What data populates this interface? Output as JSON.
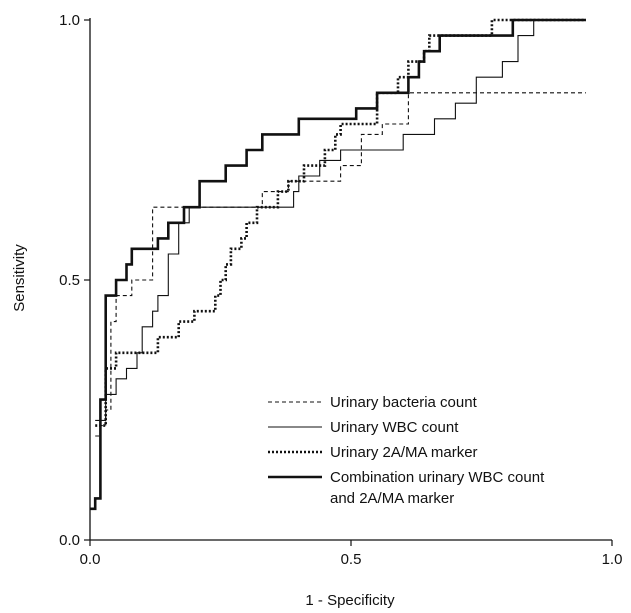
{
  "chart_data": {
    "type": "line",
    "xlabel": "1 - Specificity",
    "ylabel": "Sensitivity",
    "xlim": [
      0,
      1
    ],
    "ylim": [
      0,
      1
    ],
    "x_ticks": [
      "0.0",
      "0.5",
      "1.0"
    ],
    "y_ticks": [
      "0.0",
      "0.5",
      "1.0"
    ],
    "grid": false,
    "legend_position": "bottom-right",
    "series": [
      {
        "name": "Urinary bacteria count",
        "style": "dashed-thin",
        "points": [
          [
            0.01,
            0.2
          ],
          [
            0.02,
            0.2
          ],
          [
            0.02,
            0.22
          ],
          [
            0.03,
            0.22
          ],
          [
            0.03,
            0.25
          ],
          [
            0.04,
            0.25
          ],
          [
            0.04,
            0.42
          ],
          [
            0.05,
            0.42
          ],
          [
            0.05,
            0.47
          ],
          [
            0.08,
            0.47
          ],
          [
            0.08,
            0.5
          ],
          [
            0.12,
            0.5
          ],
          [
            0.12,
            0.64
          ],
          [
            0.33,
            0.64
          ],
          [
            0.33,
            0.67
          ],
          [
            0.38,
            0.67
          ],
          [
            0.38,
            0.69
          ],
          [
            0.43,
            0.69
          ],
          [
            0.43,
            0.69
          ],
          [
            0.48,
            0.69
          ],
          [
            0.48,
            0.72
          ],
          [
            0.52,
            0.72
          ],
          [
            0.52,
            0.78
          ],
          [
            0.56,
            0.78
          ],
          [
            0.56,
            0.8
          ],
          [
            0.61,
            0.8
          ],
          [
            0.61,
            0.86
          ],
          [
            0.67,
            0.86
          ],
          [
            0.67,
            0.86
          ],
          [
            0.95,
            0.86
          ]
        ]
      },
      {
        "name": "Urinary WBC count",
        "style": "solid-thin",
        "points": [
          [
            0.01,
            0.23
          ],
          [
            0.03,
            0.23
          ],
          [
            0.03,
            0.28
          ],
          [
            0.05,
            0.28
          ],
          [
            0.05,
            0.31
          ],
          [
            0.07,
            0.31
          ],
          [
            0.07,
            0.33
          ],
          [
            0.09,
            0.33
          ],
          [
            0.09,
            0.36
          ],
          [
            0.1,
            0.36
          ],
          [
            0.1,
            0.41
          ],
          [
            0.12,
            0.41
          ],
          [
            0.12,
            0.44
          ],
          [
            0.13,
            0.44
          ],
          [
            0.13,
            0.47
          ],
          [
            0.15,
            0.47
          ],
          [
            0.15,
            0.55
          ],
          [
            0.17,
            0.55
          ],
          [
            0.17,
            0.61
          ],
          [
            0.19,
            0.61
          ],
          [
            0.19,
            0.64
          ],
          [
            0.39,
            0.64
          ],
          [
            0.39,
            0.67
          ],
          [
            0.4,
            0.67
          ],
          [
            0.4,
            0.7
          ],
          [
            0.44,
            0.7
          ],
          [
            0.44,
            0.73
          ],
          [
            0.48,
            0.73
          ],
          [
            0.48,
            0.75
          ],
          [
            0.56,
            0.75
          ],
          [
            0.56,
            0.75
          ],
          [
            0.6,
            0.75
          ],
          [
            0.6,
            0.78
          ],
          [
            0.66,
            0.78
          ],
          [
            0.66,
            0.81
          ],
          [
            0.7,
            0.81
          ],
          [
            0.7,
            0.84
          ],
          [
            0.74,
            0.84
          ],
          [
            0.74,
            0.89
          ],
          [
            0.79,
            0.89
          ],
          [
            0.79,
            0.92
          ],
          [
            0.82,
            0.92
          ],
          [
            0.82,
            0.97
          ],
          [
            0.85,
            0.97
          ],
          [
            0.85,
            1.0
          ],
          [
            0.95,
            1.0
          ]
        ]
      },
      {
        "name": "Urinary 2A/MA marker",
        "style": "dotted-thick",
        "points": [
          [
            0.01,
            0.22
          ],
          [
            0.03,
            0.22
          ],
          [
            0.03,
            0.33
          ],
          [
            0.05,
            0.33
          ],
          [
            0.05,
            0.36
          ],
          [
            0.09,
            0.36
          ],
          [
            0.09,
            0.36
          ],
          [
            0.11,
            0.36
          ],
          [
            0.11,
            0.36
          ],
          [
            0.13,
            0.36
          ],
          [
            0.13,
            0.39
          ],
          [
            0.17,
            0.39
          ],
          [
            0.17,
            0.42
          ],
          [
            0.2,
            0.42
          ],
          [
            0.2,
            0.44
          ],
          [
            0.24,
            0.44
          ],
          [
            0.24,
            0.47
          ],
          [
            0.25,
            0.47
          ],
          [
            0.25,
            0.5
          ],
          [
            0.26,
            0.5
          ],
          [
            0.26,
            0.53
          ],
          [
            0.27,
            0.53
          ],
          [
            0.27,
            0.56
          ],
          [
            0.29,
            0.56
          ],
          [
            0.29,
            0.58
          ],
          [
            0.3,
            0.58
          ],
          [
            0.3,
            0.61
          ],
          [
            0.32,
            0.61
          ],
          [
            0.32,
            0.64
          ],
          [
            0.36,
            0.64
          ],
          [
            0.36,
            0.67
          ],
          [
            0.38,
            0.67
          ],
          [
            0.38,
            0.69
          ],
          [
            0.41,
            0.69
          ],
          [
            0.41,
            0.72
          ],
          [
            0.45,
            0.72
          ],
          [
            0.45,
            0.75
          ],
          [
            0.47,
            0.75
          ],
          [
            0.47,
            0.78
          ],
          [
            0.48,
            0.78
          ],
          [
            0.48,
            0.8
          ],
          [
            0.55,
            0.8
          ],
          [
            0.55,
            0.86
          ],
          [
            0.59,
            0.86
          ],
          [
            0.59,
            0.89
          ],
          [
            0.61,
            0.89
          ],
          [
            0.61,
            0.92
          ],
          [
            0.64,
            0.92
          ],
          [
            0.64,
            0.94
          ],
          [
            0.65,
            0.94
          ],
          [
            0.65,
            0.97
          ],
          [
            0.77,
            0.97
          ],
          [
            0.77,
            1.0
          ],
          [
            0.95,
            1.0
          ]
        ]
      },
      {
        "name": "Combination urinary WBC count and 2A/MA marker",
        "style": "solid-thick",
        "points": [
          [
            0.0,
            0.06
          ],
          [
            0.01,
            0.06
          ],
          [
            0.01,
            0.08
          ],
          [
            0.02,
            0.08
          ],
          [
            0.02,
            0.27
          ],
          [
            0.03,
            0.27
          ],
          [
            0.03,
            0.47
          ],
          [
            0.05,
            0.47
          ],
          [
            0.05,
            0.5
          ],
          [
            0.07,
            0.5
          ],
          [
            0.07,
            0.53
          ],
          [
            0.08,
            0.53
          ],
          [
            0.08,
            0.56
          ],
          [
            0.11,
            0.56
          ],
          [
            0.11,
            0.56
          ],
          [
            0.13,
            0.56
          ],
          [
            0.13,
            0.58
          ],
          [
            0.15,
            0.58
          ],
          [
            0.15,
            0.61
          ],
          [
            0.18,
            0.61
          ],
          [
            0.18,
            0.64
          ],
          [
            0.21,
            0.64
          ],
          [
            0.21,
            0.69
          ],
          [
            0.26,
            0.69
          ],
          [
            0.26,
            0.72
          ],
          [
            0.3,
            0.72
          ],
          [
            0.3,
            0.75
          ],
          [
            0.33,
            0.75
          ],
          [
            0.33,
            0.78
          ],
          [
            0.37,
            0.78
          ],
          [
            0.37,
            0.78
          ],
          [
            0.4,
            0.78
          ],
          [
            0.4,
            0.81
          ],
          [
            0.51,
            0.81
          ],
          [
            0.51,
            0.83
          ],
          [
            0.55,
            0.83
          ],
          [
            0.55,
            0.86
          ],
          [
            0.61,
            0.86
          ],
          [
            0.61,
            0.89
          ],
          [
            0.63,
            0.89
          ],
          [
            0.63,
            0.92
          ],
          [
            0.64,
            0.92
          ],
          [
            0.64,
            0.94
          ],
          [
            0.67,
            0.94
          ],
          [
            0.67,
            0.97
          ],
          [
            0.7,
            0.97
          ],
          [
            0.7,
            0.97
          ],
          [
            0.81,
            0.97
          ],
          [
            0.81,
            1.0
          ],
          [
            0.95,
            1.0
          ]
        ]
      }
    ]
  }
}
